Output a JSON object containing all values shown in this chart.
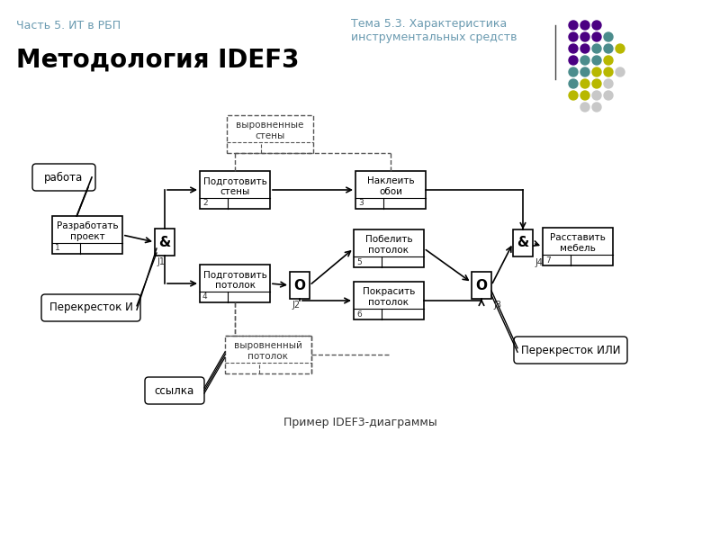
{
  "title_left": "Часть 5. ИТ в РБП",
  "title_right": "Тема 5.3. Характеристика\nинструментальных средств",
  "main_title": "Методология IDEF3",
  "caption": "Пример IDEF3-диаграммы",
  "bg_color": "#ffffff",
  "header_color": "#6a9ab0",
  "dot_rows": [
    [
      {
        "c": "#4b0082",
        "x": 0
      },
      {
        "c": "#4b0082",
        "x": 1
      },
      {
        "c": "#4b0082",
        "x": 2
      }
    ],
    [
      {
        "c": "#4b0082",
        "x": 0
      },
      {
        "c": "#4b0082",
        "x": 1
      },
      {
        "c": "#4b0082",
        "x": 2
      },
      {
        "c": "#4b8c8c",
        "x": 3
      }
    ],
    [
      {
        "c": "#4b0082",
        "x": 0
      },
      {
        "c": "#4b0082",
        "x": 1
      },
      {
        "c": "#4b8c8c",
        "x": 2
      },
      {
        "c": "#4b8c8c",
        "x": 3
      },
      {
        "c": "#b8b800",
        "x": 4
      }
    ],
    [
      {
        "c": "#4b0082",
        "x": 0
      },
      {
        "c": "#4b8c8c",
        "x": 1
      },
      {
        "c": "#4b8c8c",
        "x": 2
      },
      {
        "c": "#b8b800",
        "x": 3
      }
    ],
    [
      {
        "c": "#4b8c8c",
        "x": 0
      },
      {
        "c": "#4b8c8c",
        "x": 1
      },
      {
        "c": "#b8b800",
        "x": 2
      },
      {
        "c": "#b8b800",
        "x": 3
      },
      {
        "c": "#c8c8c8",
        "x": 4
      }
    ],
    [
      {
        "c": "#4b8c8c",
        "x": 0
      },
      {
        "c": "#b8b800",
        "x": 1
      },
      {
        "c": "#b8b800",
        "x": 2
      },
      {
        "c": "#c8c8c8",
        "x": 3
      }
    ],
    [
      {
        "c": "#b8b800",
        "x": 0
      },
      {
        "c": "#b8b800",
        "x": 1
      },
      {
        "c": "#c8c8c8",
        "x": 2
      },
      {
        "c": "#c8c8c8",
        "x": 3
      }
    ],
    [
      {
        "c": "#c8c8c8",
        "x": 1
      },
      {
        "c": "#c8c8c8",
        "x": 2
      }
    ]
  ]
}
